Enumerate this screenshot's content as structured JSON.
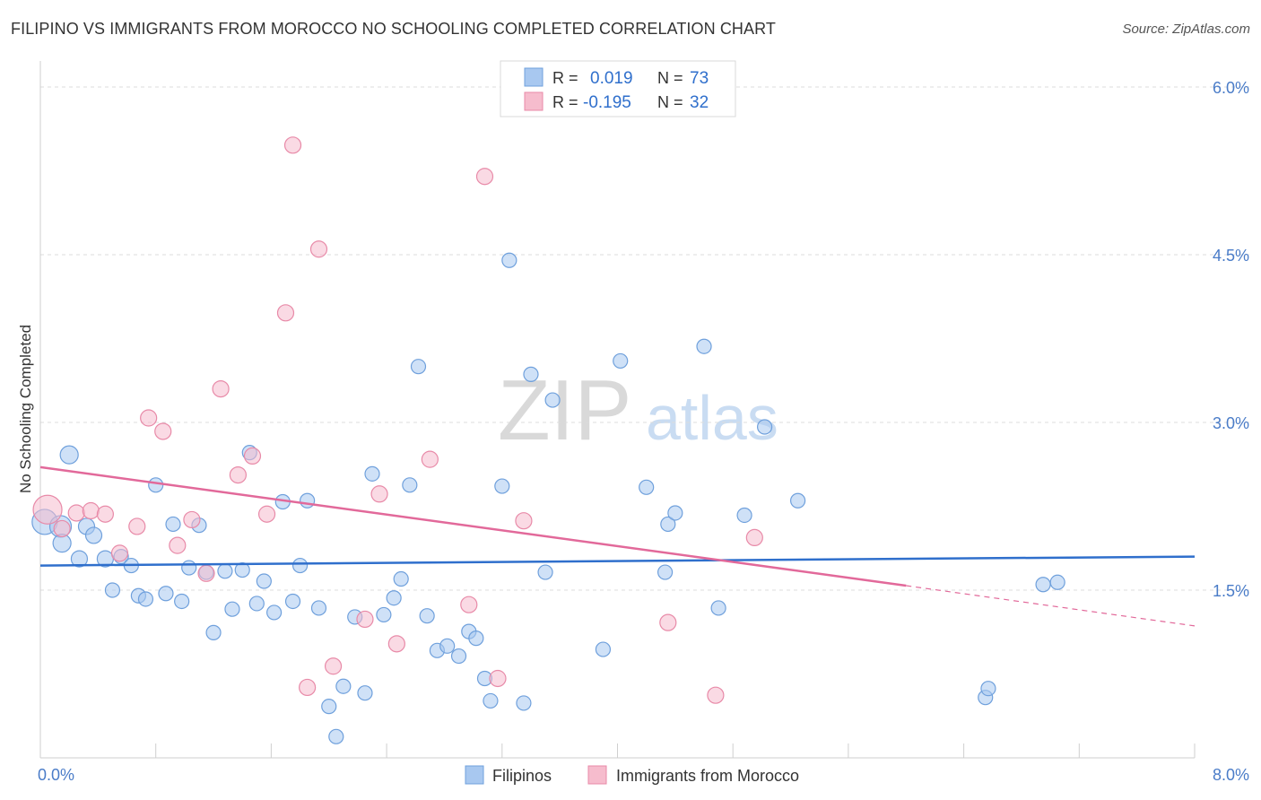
{
  "header": {
    "title": "FILIPINO VS IMMIGRANTS FROM MOROCCO NO SCHOOLING COMPLETED CORRELATION CHART",
    "source": "Source: ZipAtlas.com"
  },
  "colors": {
    "blue_fill": "#a8c8f0",
    "blue_stroke": "#6fa0dc",
    "blue_line": "#2f6fcc",
    "pink_fill": "#f6bccd",
    "pink_stroke": "#e88aa8",
    "pink_line": "#e2699a",
    "axis_text": "#4a7cc8",
    "grid": "#dcdcdc"
  },
  "watermark": {
    "zip": "ZIP",
    "atlas": "atlas"
  },
  "legend_top": [
    {
      "r_label": "R =",
      "r_value": "0.019",
      "n_label": "N =",
      "n_value": "73"
    },
    {
      "r_label": "R =",
      "r_value": "-0.195",
      "n_label": "N =",
      "n_value": "32"
    }
  ],
  "chart_data": {
    "type": "scatter",
    "title": "FILIPINO VS IMMIGRANTS FROM MOROCCO NO SCHOOLING COMPLETED CORRELATION CHART",
    "xlabel": "",
    "ylabel": "No Schooling Completed",
    "xlim": [
      0,
      8
    ],
    "ylim": [
      0,
      6.2
    ],
    "x_tick_labels": [
      "0.0%",
      "8.0%"
    ],
    "y_tick_values": [
      1.5,
      3.0,
      4.5,
      6.0
    ],
    "y_tick_labels": [
      "1.5%",
      "3.0%",
      "4.5%",
      "6.0%"
    ],
    "grid": true,
    "legend_position": "bottom",
    "series": [
      {
        "name": "Filipinos",
        "color": "blue",
        "trend": {
          "x": [
            0.0,
            8.0
          ],
          "y": [
            1.72,
            1.8
          ]
        },
        "points": [
          [
            0.03,
            2.11,
            14
          ],
          [
            0.14,
            2.07,
            12
          ],
          [
            0.15,
            1.92,
            10
          ],
          [
            0.2,
            2.71,
            10
          ],
          [
            0.27,
            1.78,
            9
          ],
          [
            0.32,
            2.07,
            9
          ],
          [
            0.37,
            1.99,
            9
          ],
          [
            0.45,
            1.78,
            9
          ],
          [
            0.5,
            1.5,
            8
          ],
          [
            0.56,
            1.8,
            8
          ],
          [
            0.63,
            1.72,
            8
          ],
          [
            0.68,
            1.45,
            8
          ],
          [
            0.73,
            1.42,
            8
          ],
          [
            0.8,
            2.44,
            8
          ],
          [
            0.87,
            1.47,
            8
          ],
          [
            0.92,
            2.09,
            8
          ],
          [
            0.98,
            1.4,
            8
          ],
          [
            1.03,
            1.7,
            8
          ],
          [
            1.1,
            2.08,
            8
          ],
          [
            1.15,
            1.66,
            8
          ],
          [
            1.2,
            1.12,
            8
          ],
          [
            1.28,
            1.67,
            8
          ],
          [
            1.33,
            1.33,
            8
          ],
          [
            1.4,
            1.68,
            8
          ],
          [
            1.45,
            2.73,
            8
          ],
          [
            1.5,
            1.38,
            8
          ],
          [
            1.55,
            1.58,
            8
          ],
          [
            1.62,
            1.3,
            8
          ],
          [
            1.68,
            2.29,
            8
          ],
          [
            1.75,
            1.4,
            8
          ],
          [
            1.8,
            1.72,
            8
          ],
          [
            1.85,
            2.3,
            8
          ],
          [
            1.93,
            1.34,
            8
          ],
          [
            2.0,
            0.46,
            8
          ],
          [
            2.05,
            0.19,
            8
          ],
          [
            2.1,
            0.64,
            8
          ],
          [
            2.18,
            1.26,
            8
          ],
          [
            2.25,
            0.58,
            8
          ],
          [
            2.3,
            2.54,
            8
          ],
          [
            2.38,
            1.28,
            8
          ],
          [
            2.45,
            1.43,
            8
          ],
          [
            2.5,
            1.6,
            8
          ],
          [
            2.56,
            2.44,
            8
          ],
          [
            2.62,
            3.5,
            8
          ],
          [
            2.68,
            1.27,
            8
          ],
          [
            2.75,
            0.96,
            8
          ],
          [
            2.82,
            1.0,
            8
          ],
          [
            2.9,
            0.91,
            8
          ],
          [
            2.97,
            1.13,
            8
          ],
          [
            3.02,
            1.07,
            8
          ],
          [
            3.08,
            0.71,
            8
          ],
          [
            3.12,
            0.51,
            8
          ],
          [
            3.2,
            2.43,
            8
          ],
          [
            3.25,
            4.45,
            8
          ],
          [
            3.35,
            0.49,
            8
          ],
          [
            3.4,
            3.43,
            8
          ],
          [
            3.5,
            1.66,
            8
          ],
          [
            3.55,
            3.2,
            8
          ],
          [
            3.9,
            0.97,
            8
          ],
          [
            4.02,
            3.55,
            8
          ],
          [
            4.2,
            2.42,
            8
          ],
          [
            4.33,
            1.66,
            8
          ],
          [
            4.35,
            2.09,
            8
          ],
          [
            4.4,
            2.19,
            8
          ],
          [
            4.6,
            3.68,
            8
          ],
          [
            4.7,
            1.34,
            8
          ],
          [
            4.88,
            2.17,
            8
          ],
          [
            5.02,
            2.96,
            8
          ],
          [
            5.25,
            2.3,
            8
          ],
          [
            6.95,
            1.55,
            8
          ],
          [
            7.05,
            1.57,
            8
          ],
          [
            6.55,
            0.54,
            8
          ],
          [
            6.57,
            0.62,
            8
          ]
        ]
      },
      {
        "name": "Immigrants from Morocco",
        "color": "pink",
        "trend": {
          "x": [
            0.0,
            6.0
          ],
          "y": [
            2.6,
            1.54
          ]
        },
        "trend_dashed": {
          "x": [
            6.0,
            8.0
          ],
          "y": [
            1.54,
            1.18
          ]
        },
        "points": [
          [
            0.05,
            2.22,
            16
          ],
          [
            0.15,
            2.05,
            9
          ],
          [
            0.25,
            2.19,
            9
          ],
          [
            0.35,
            2.21,
            9
          ],
          [
            0.45,
            2.18,
            9
          ],
          [
            0.55,
            1.83,
            9
          ],
          [
            0.67,
            2.07,
            9
          ],
          [
            0.75,
            3.04,
            9
          ],
          [
            0.85,
            2.92,
            9
          ],
          [
            0.95,
            1.9,
            9
          ],
          [
            1.05,
            2.13,
            9
          ],
          [
            1.15,
            1.65,
            9
          ],
          [
            1.25,
            3.3,
            9
          ],
          [
            1.37,
            2.53,
            9
          ],
          [
            1.47,
            2.7,
            9
          ],
          [
            1.57,
            2.18,
            9
          ],
          [
            1.7,
            3.98,
            9
          ],
          [
            1.75,
            5.48,
            9
          ],
          [
            1.85,
            0.63,
            9
          ],
          [
            1.93,
            4.55,
            9
          ],
          [
            2.03,
            0.82,
            9
          ],
          [
            2.25,
            1.24,
            9
          ],
          [
            2.35,
            2.36,
            9
          ],
          [
            2.47,
            1.02,
            9
          ],
          [
            2.7,
            2.67,
            9
          ],
          [
            2.97,
            1.37,
            9
          ],
          [
            3.08,
            5.2,
            9
          ],
          [
            3.17,
            0.71,
            9
          ],
          [
            3.35,
            2.12,
            9
          ],
          [
            4.35,
            1.21,
            9
          ],
          [
            4.68,
            0.56,
            9
          ],
          [
            4.95,
            1.97,
            9
          ]
        ]
      }
    ]
  },
  "legend_bottom": [
    {
      "label": "Filipinos"
    },
    {
      "label": "Immigrants from Morocco"
    }
  ]
}
